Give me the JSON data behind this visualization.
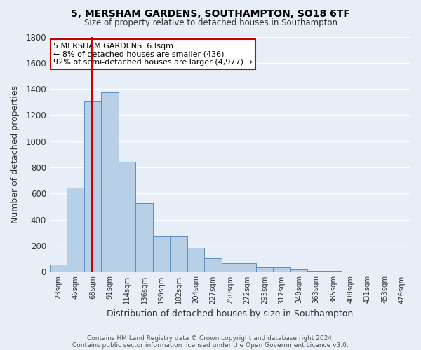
{
  "title": "5, MERSHAM GARDENS, SOUTHAMPTON, SO18 6TF",
  "subtitle": "Size of property relative to detached houses in Southampton",
  "xlabel": "Distribution of detached houses by size in Southampton",
  "ylabel": "Number of detached properties",
  "footer_line1": "Contains HM Land Registry data © Crown copyright and database right 2024.",
  "footer_line2": "Contains public sector information licensed under the Open Government Licence v3.0.",
  "bins": [
    "23sqm",
    "46sqm",
    "68sqm",
    "91sqm",
    "114sqm",
    "136sqm",
    "159sqm",
    "182sqm",
    "204sqm",
    "227sqm",
    "250sqm",
    "272sqm",
    "295sqm",
    "317sqm",
    "340sqm",
    "363sqm",
    "385sqm",
    "408sqm",
    "431sqm",
    "453sqm",
    "476sqm"
  ],
  "bar_heights": [
    55,
    645,
    1310,
    1375,
    845,
    530,
    275,
    275,
    185,
    105,
    65,
    65,
    35,
    35,
    20,
    10,
    10,
    0,
    0,
    0,
    0
  ],
  "bar_color": "#b8cfe8",
  "bar_edge_color": "#5a8fc0",
  "bg_color": "#e8eef8",
  "grid_color": "#ffffff",
  "vline_color": "#cc0000",
  "ylim": [
    0,
    1800
  ],
  "yticks": [
    0,
    200,
    400,
    600,
    800,
    1000,
    1200,
    1400,
    1600,
    1800
  ],
  "annotation_text": "5 MERSHAM GARDENS: 63sqm\n← 8% of detached houses are smaller (436)\n92% of semi-detached houses are larger (4,977) →",
  "annotation_box_color": "#ffffff",
  "annotation_box_edge": "#cc0000",
  "vline_x_pos": 1.96
}
